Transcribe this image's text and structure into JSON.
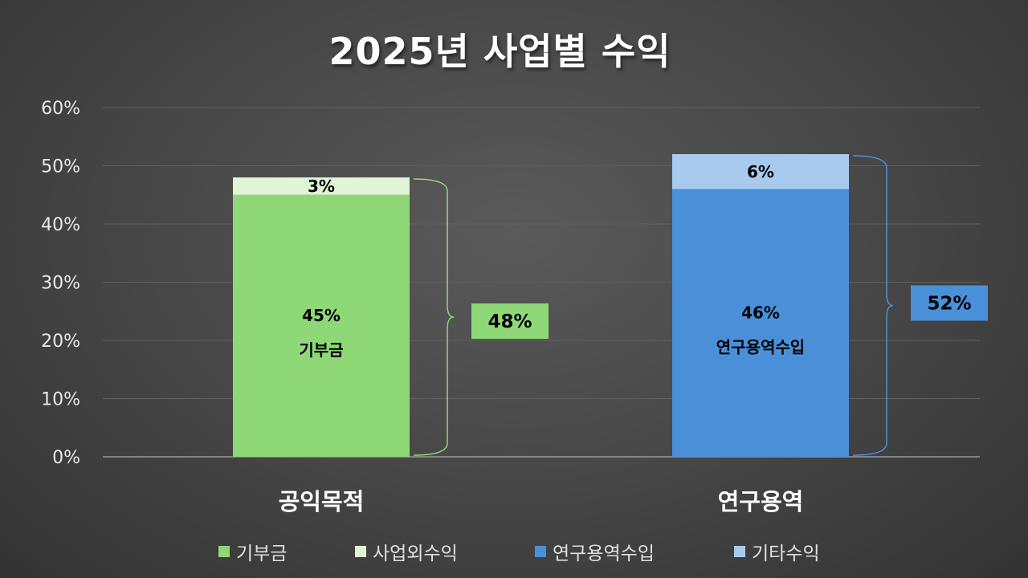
{
  "chart_data": {
    "type": "bar",
    "stacked": true,
    "title": "2025년 사업별 수익",
    "categories": [
      "공익목적",
      "연구용역"
    ],
    "ylim": [
      0,
      60
    ],
    "yticks": [
      "0%",
      "10%",
      "20%",
      "30%",
      "40%",
      "50%",
      "60%"
    ],
    "grid": true,
    "legend_position": "bottom",
    "series": [
      {
        "name": "기부금",
        "values": [
          45,
          0
        ],
        "labels": [
          "45%",
          ""
        ],
        "inner_labels": [
          "기부금",
          ""
        ],
        "color": "#8fd877"
      },
      {
        "name": "사업외수익",
        "values": [
          3,
          0
        ],
        "labels": [
          "3%",
          ""
        ],
        "inner_labels": [
          "",
          ""
        ],
        "color": "#dff5d6"
      },
      {
        "name": "연구용역수입",
        "values": [
          0,
          46
        ],
        "labels": [
          "",
          "46%"
        ],
        "inner_labels": [
          "",
          "연구용역수입"
        ],
        "color": "#4a90d9"
      },
      {
        "name": "기타수익",
        "values": [
          0,
          6
        ],
        "labels": [
          "",
          "6%"
        ],
        "inner_labels": [
          "",
          ""
        ],
        "color": "#a8caee"
      }
    ],
    "totals": [
      {
        "label": "48%",
        "color": "#8fd877"
      },
      {
        "label": "52%",
        "color": "#4a90d9"
      }
    ]
  }
}
